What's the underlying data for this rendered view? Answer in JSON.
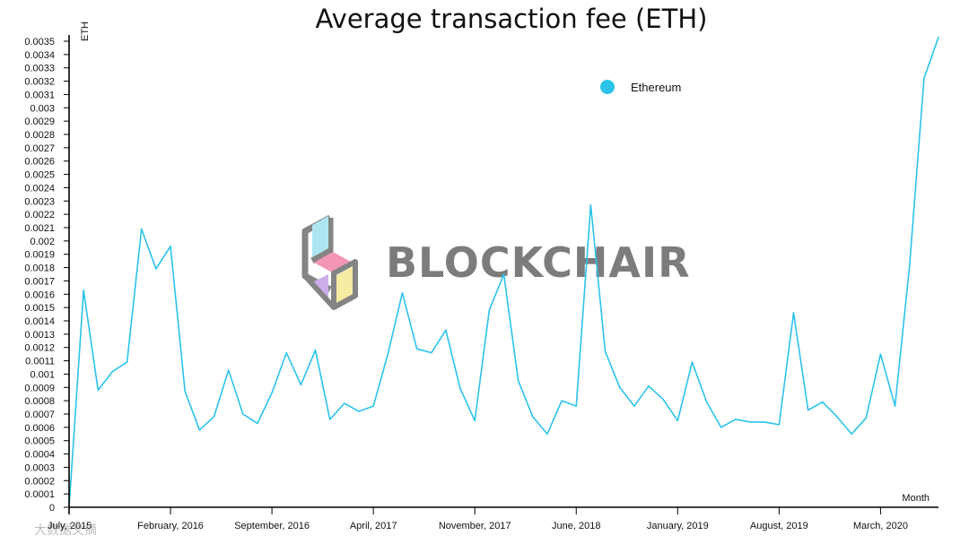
{
  "chart_data": {
    "type": "line",
    "title": "Average transaction fee (ETH)",
    "ylabel": "ETH",
    "xlabel": "Month",
    "ylim": [
      0,
      0.0035
    ],
    "yticks": [
      "0",
      "0.0001",
      "0.0002",
      "0.0003",
      "0.0004",
      "0.0005",
      "0.0006",
      "0.0007",
      "0.0008",
      "0.0009",
      "0.001",
      "0.0011",
      "0.0012",
      "0.0013",
      "0.0014",
      "0.0015",
      "0.0016",
      "0.0017",
      "0.0018",
      "0.0019",
      "0.002",
      "0.0021",
      "0.0022",
      "0.0023",
      "0.0024",
      "0.0025",
      "0.0026",
      "0.0027",
      "0.0028",
      "0.0029",
      "0.003",
      "0.0031",
      "0.0032",
      "0.0033",
      "0.0034",
      "0.0035"
    ],
    "xticks": [
      {
        "label": "July, 2015",
        "index": 0
      },
      {
        "label": "February, 2016",
        "index": 7
      },
      {
        "label": "September, 2016",
        "index": 14
      },
      {
        "label": "April, 2017",
        "index": 21
      },
      {
        "label": "November, 2017",
        "index": 28
      },
      {
        "label": "June, 2018",
        "index": 35
      },
      {
        "label": "January, 2019",
        "index": 42
      },
      {
        "label": "August, 2019",
        "index": 49
      },
      {
        "label": "March, 2020",
        "index": 56
      }
    ],
    "grid": false,
    "legend_position": "top-right",
    "series": [
      {
        "name": "Ethereum",
        "color": "#2bc3e8",
        "values": [
          0,
          0.00163,
          0.00088,
          0.00102,
          0.00109,
          0.00209,
          0.00179,
          0.00196,
          0.00087,
          0.00058,
          0.00068,
          0.00103,
          0.0007,
          0.00063,
          0.00086,
          0.00116,
          0.00092,
          0.00118,
          0.00066,
          0.00078,
          0.00072,
          0.00076,
          0.00115,
          0.00161,
          0.00119,
          0.00116,
          0.00133,
          0.00089,
          0.00065,
          0.00148,
          0.00175,
          0.00095,
          0.00068,
          0.00055,
          0.0008,
          0.00076,
          0.00227,
          0.00117,
          0.0009,
          0.00076,
          0.00091,
          0.00081,
          0.00065,
          0.00109,
          0.00079,
          0.0006,
          0.00066,
          0.00064,
          0.00064,
          0.00062,
          0.00146,
          0.00073,
          0.00079,
          0.00068,
          0.00055,
          0.00067,
          0.00115,
          0.00076,
          0.00181,
          0.00322,
          0.00353
        ]
      }
    ]
  },
  "watermark": {
    "brand": "BLOCKCHAIR",
    "credit": "大数据文摘"
  }
}
